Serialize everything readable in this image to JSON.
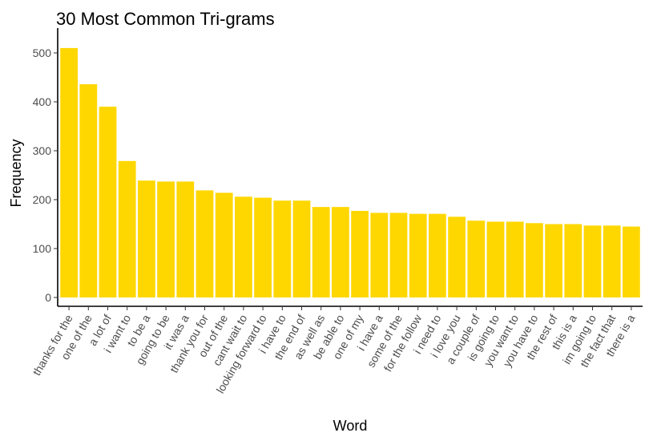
{
  "chart_data": {
    "type": "bar",
    "title": "30 Most Common Tri-grams",
    "xlabel": "Word",
    "ylabel": "Frequency",
    "ylim": [
      0,
      530
    ],
    "yticks": [
      0,
      100,
      200,
      300,
      400,
      500
    ],
    "grid": false,
    "bar_color": "#FFD700",
    "categories": [
      "thanks for the",
      "one of the",
      "a lot of",
      "i want to",
      "to be a",
      "going to be",
      "it was a",
      "thank you for",
      "out of the",
      "cant wait to",
      "looking forward to",
      "i have to",
      "the end of",
      "as well as",
      "be able to",
      "one of my",
      "i have a",
      "some of the",
      "for the follow",
      "i need to",
      "i love you",
      "a couple of",
      "is going to",
      "you want to",
      "you have to",
      "the rest of",
      "this is a",
      "im going to",
      "the fact that",
      "there is a"
    ],
    "values": [
      510,
      436,
      390,
      279,
      239,
      237,
      237,
      219,
      214,
      206,
      204,
      198,
      198,
      185,
      185,
      177,
      173,
      173,
      171,
      171,
      165,
      157,
      155,
      155,
      152,
      150,
      150,
      147,
      147,
      145
    ]
  }
}
